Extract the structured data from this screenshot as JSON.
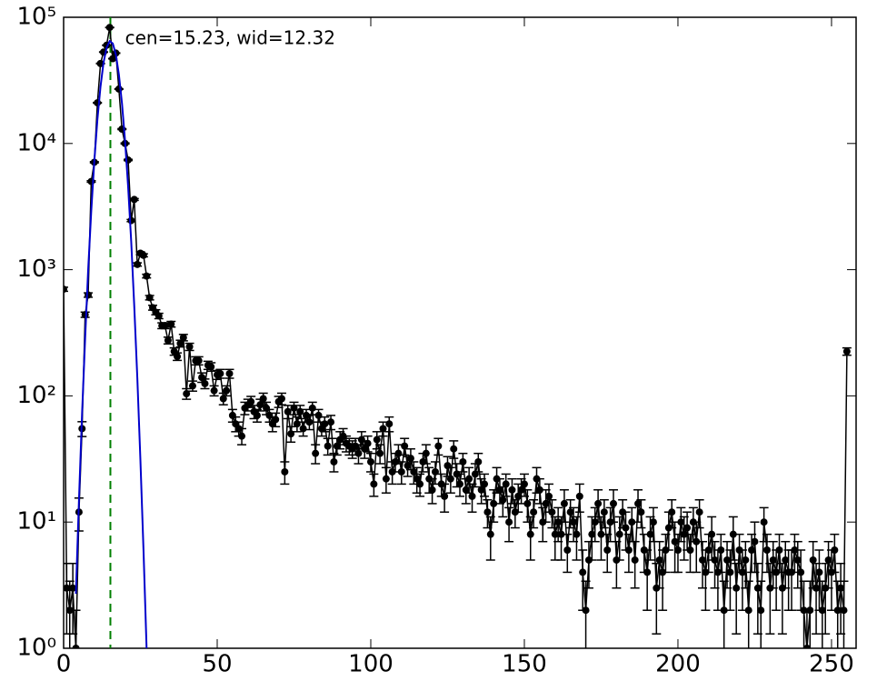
{
  "chart_data": {
    "type": "errorbar-log",
    "annotation": "cen=15.23, wid=12.32",
    "annotation_x": 20,
    "annotation_color": "#008000",
    "center_line": 15.23,
    "xlim": [
      0,
      258
    ],
    "xticks": [
      0,
      50,
      100,
      150,
      200,
      250
    ],
    "ylim": [
      1,
      100000
    ],
    "log_y": true,
    "yticks": [
      {
        "value": 1,
        "label": "10⁰"
      },
      {
        "value": 10,
        "label": "10¹"
      },
      {
        "value": 100,
        "label": "10²"
      },
      {
        "value": 1000,
        "label": "10³"
      },
      {
        "value": 10000,
        "label": "10⁴"
      },
      {
        "value": 100000,
        "label": "10⁵"
      }
    ],
    "data": {
      "color": "#000000",
      "x": [
        0,
        1,
        2,
        3,
        4,
        5,
        6,
        7,
        8,
        9,
        10,
        11,
        12,
        13,
        14,
        15,
        16,
        17,
        18,
        19,
        20,
        21,
        22,
        23,
        24,
        25,
        26,
        27,
        28,
        29,
        30,
        31,
        32,
        33,
        34,
        35,
        36,
        37,
        38,
        39,
        40,
        41,
        42,
        43,
        44,
        45,
        46,
        47,
        48,
        49,
        50,
        51,
        52,
        53,
        54,
        55,
        56,
        57,
        58,
        59,
        60,
        61,
        62,
        63,
        64,
        65,
        66,
        67,
        68,
        69,
        70,
        71,
        72,
        73,
        74,
        75,
        76,
        77,
        78,
        79,
        80,
        81,
        82,
        83,
        84,
        85,
        86,
        87,
        88,
        89,
        90,
        91,
        92,
        93,
        94,
        95,
        96,
        97,
        98,
        99,
        100,
        101,
        102,
        103,
        104,
        105,
        106,
        107,
        108,
        109,
        110,
        111,
        112,
        113,
        114,
        115,
        116,
        117,
        118,
        119,
        120,
        121,
        122,
        123,
        124,
        125,
        126,
        127,
        128,
        129,
        130,
        131,
        132,
        133,
        134,
        135,
        136,
        137,
        138,
        139,
        140,
        141,
        142,
        143,
        144,
        145,
        146,
        147,
        148,
        149,
        150,
        151,
        152,
        153,
        154,
        155,
        156,
        157,
        158,
        159,
        160,
        161,
        162,
        163,
        164,
        165,
        166,
        167,
        168,
        169,
        170,
        171,
        172,
        173,
        174,
        175,
        176,
        177,
        178,
        179,
        180,
        181,
        182,
        183,
        184,
        185,
        186,
        187,
        188,
        189,
        190,
        191,
        192,
        193,
        194,
        195,
        196,
        197,
        198,
        199,
        200,
        201,
        202,
        203,
        204,
        205,
        206,
        207,
        208,
        209,
        210,
        211,
        212,
        213,
        214,
        215,
        216,
        217,
        218,
        219,
        220,
        221,
        222,
        223,
        224,
        225,
        226,
        227,
        228,
        229,
        230,
        231,
        232,
        233,
        234,
        235,
        236,
        237,
        238,
        239,
        240,
        241,
        242,
        243,
        244,
        245,
        246,
        247,
        248,
        249,
        250,
        251,
        252,
        253,
        254,
        255
      ],
      "values": [
        700,
        3,
        2,
        3,
        1,
        12,
        55,
        440,
        630,
        5000,
        7100,
        21000,
        43000,
        53000,
        60000,
        83000,
        47000,
        52000,
        27000,
        13000,
        10000,
        7400,
        2450,
        3600,
        1100,
        1350,
        1300,
        890,
        600,
        500,
        460,
        430,
        360,
        360,
        275,
        370,
        225,
        205,
        260,
        290,
        104,
        245,
        120,
        190,
        190,
        140,
        125,
        175,
        170,
        110,
        147,
        150,
        95,
        110,
        150,
        70,
        60,
        55,
        48,
        80,
        85,
        90,
        75,
        70,
        85,
        95,
        80,
        70,
        60,
        65,
        90,
        95,
        25,
        75,
        50,
        80,
        60,
        75,
        55,
        70,
        62,
        80,
        35,
        70,
        55,
        60,
        40,
        62,
        30,
        40,
        45,
        48,
        42,
        40,
        38,
        40,
        35,
        45,
        38,
        42,
        30,
        20,
        45,
        35,
        55,
        22,
        60,
        25,
        30,
        35,
        25,
        40,
        28,
        32,
        25,
        22,
        20,
        30,
        35,
        22,
        18,
        25,
        40,
        20,
        16,
        28,
        22,
        38,
        24,
        20,
        30,
        18,
        22,
        16,
        24,
        30,
        18,
        20,
        12,
        8,
        14,
        22,
        18,
        15,
        20,
        10,
        18,
        12,
        16,
        18,
        20,
        14,
        8,
        12,
        22,
        18,
        10,
        14,
        16,
        12,
        8,
        10,
        8,
        14,
        6,
        12,
        10,
        8,
        16,
        4,
        2,
        5,
        8,
        10,
        14,
        8,
        12,
        6,
        10,
        14,
        5,
        8,
        12,
        9,
        6,
        10,
        5,
        14,
        12,
        6,
        4,
        8,
        10,
        3,
        5,
        4,
        6,
        9,
        12,
        7,
        6,
        10,
        8,
        9,
        6,
        10,
        7,
        12,
        5,
        4,
        6,
        8,
        5,
        4,
        6,
        2,
        5,
        4,
        8,
        3,
        6,
        4,
        5,
        2,
        6,
        7,
        3,
        2,
        10,
        6,
        3,
        5,
        4,
        6,
        3,
        5,
        4,
        4,
        6,
        5,
        4,
        2,
        1,
        2,
        5,
        3,
        4,
        2,
        3,
        5,
        4,
        6,
        2,
        3,
        2,
        225
      ],
      "errors": [
        26,
        1.7,
        1.4,
        1.7,
        1,
        3.5,
        7.4,
        21,
        25,
        71,
        84,
        145,
        207,
        230,
        245,
        288,
        217,
        228,
        164,
        114,
        100,
        86,
        49,
        60,
        33,
        37,
        36,
        30,
        24,
        22,
        21,
        21,
        19,
        19,
        17,
        19,
        15,
        14,
        16,
        17,
        10,
        16,
        11,
        14,
        14,
        12,
        11,
        13,
        13,
        10,
        12,
        12,
        10,
        10,
        12,
        8,
        8,
        7,
        7,
        9,
        9,
        9,
        9,
        8,
        9,
        10,
        9,
        8,
        8,
        8,
        9,
        10,
        5,
        9,
        7,
        9,
        8,
        9,
        7,
        8,
        8,
        9,
        6,
        8,
        7,
        8,
        6,
        8,
        5,
        6,
        7,
        7,
        6,
        6,
        6,
        6,
        6,
        7,
        6,
        6,
        5,
        4,
        7,
        6,
        7,
        5,
        8,
        5,
        5,
        6,
        5,
        6,
        5,
        6,
        5,
        5,
        4,
        5,
        6,
        5,
        4,
        5,
        6,
        4,
        4,
        5,
        5,
        6,
        5,
        4,
        5,
        4,
        5,
        4,
        5,
        5,
        4,
        4,
        3,
        3,
        4,
        5,
        4,
        4,
        4,
        3,
        4,
        3,
        4,
        4,
        4,
        4,
        3,
        3,
        5,
        4,
        3,
        4,
        4,
        3,
        3,
        3,
        3,
        4,
        2,
        3,
        3,
        3,
        4,
        2,
        1.4,
        2,
        3,
        3,
        4,
        3,
        3,
        2,
        3,
        4,
        2,
        3,
        3,
        3,
        2,
        3,
        2,
        4,
        3,
        2,
        2,
        3,
        3,
        1.7,
        2,
        2,
        2,
        3,
        3,
        3,
        2,
        3,
        3,
        3,
        2,
        3,
        3,
        3,
        2,
        2,
        2,
        3,
        2,
        2,
        2,
        1.4,
        2,
        2,
        3,
        1.7,
        2,
        2,
        2,
        1.4,
        2,
        3,
        1.7,
        1.4,
        3,
        2,
        1.7,
        2,
        2,
        2,
        1.7,
        2,
        2,
        2,
        2,
        2,
        2,
        1.4,
        1,
        1.4,
        2,
        1.7,
        2,
        1.4,
        1.7,
        2,
        2,
        2,
        1.4,
        1.7,
        1.4,
        15
      ]
    },
    "fit": {
      "color": "#0000cc",
      "x": [
        4,
        5,
        6,
        7,
        8,
        9,
        10,
        11,
        12,
        13,
        14,
        15,
        16,
        17,
        18,
        19,
        20,
        21,
        22,
        23,
        24,
        25,
        26,
        27
      ],
      "values": [
        2.7,
        15,
        72,
        288,
        994,
        2910,
        7290,
        15540,
        28230,
        43660,
        57600,
        64700,
        62000,
        50600,
        35200,
        20850,
        10530,
        4530,
        1660,
        519,
        139,
        31,
        6,
        1
      ]
    }
  }
}
